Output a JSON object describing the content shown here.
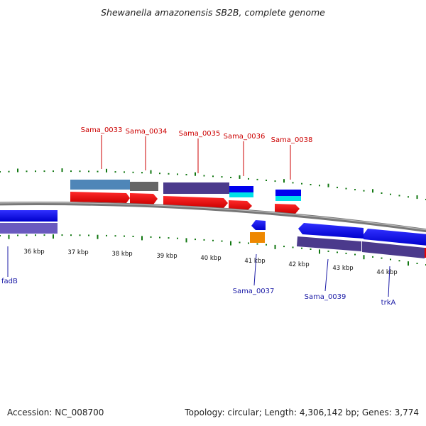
{
  "title": "Shewanella amazonensis SB2B, complete genome",
  "footer": {
    "accession": "Accession: NC_008700",
    "summary": "Topology: circular; Length: 4,306,142 bp; Genes: 3,774"
  },
  "ruler": {
    "labels": [
      "36 kbp",
      "37 kbp",
      "38 kbp",
      "39 kbp",
      "40 kbp",
      "41 kbp",
      "42 kbp",
      "43 kbp",
      "44 kbp"
    ]
  },
  "genes_top": [
    {
      "label": "Sama_0033"
    },
    {
      "label": "Sama_0034"
    },
    {
      "label": "Sama_0035"
    },
    {
      "label": "Sama_0036"
    },
    {
      "label": "Sama_0038"
    }
  ],
  "genes_bottom": [
    {
      "label": "fadB"
    },
    {
      "label": "Sama_0037"
    },
    {
      "label": "Sama_0039"
    },
    {
      "label": "trkA"
    }
  ],
  "colors": {
    "top_label": "#cc0000",
    "bottom_label": "#1a1aa6",
    "cds_red": "#ee0000",
    "gene_blue": "#0000ee",
    "purple": "#4b3a8c",
    "steel": "#4f86b8",
    "grey": "#666666",
    "cyan": "#00e0e8",
    "orange": "#ee8800",
    "tick_green": "#117711",
    "backbone": "#777777"
  }
}
